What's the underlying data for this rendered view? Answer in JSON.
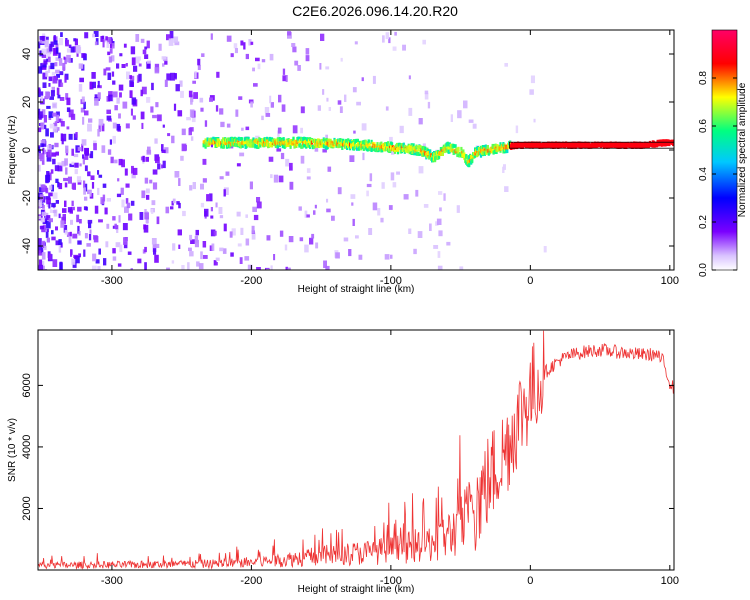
{
  "title": "C2E6.2026.096.14.20.R20",
  "chart_data": [
    {
      "type": "heatmap",
      "title": "C2E6.2026.096.14.20.R20",
      "xlabel": "Height of straight line (km)",
      "ylabel": "Frequency (Hz)",
      "xlim": [
        -353,
        103
      ],
      "ylim": [
        -50,
        50
      ],
      "xticks": [
        -300,
        -200,
        -100,
        0,
        100
      ],
      "yticks": [
        -40,
        -20,
        0,
        20,
        40
      ],
      "colorbar": {
        "label": "Normalized spectral amplitude",
        "range": [
          0,
          1
        ],
        "ticks": [
          0.0,
          0.2,
          0.4,
          0.6,
          0.8
        ],
        "colors": [
          "#ffffff",
          "#d9c2ff",
          "#7a00ff",
          "#0000ff",
          "#00c8ff",
          "#00ff80",
          "#ffff00",
          "#ff0000",
          "#ff0066"
        ]
      },
      "ridge": {
        "name": "dominant frequency trace",
        "x": [
          -235,
          -200,
          -160,
          -120,
          -100,
          -80,
          -70,
          -60,
          -50,
          -45,
          -40,
          -30,
          -20,
          -10,
          0,
          20,
          50,
          80,
          95,
          103
        ],
        "y": [
          3,
          3,
          3,
          2,
          1,
          0,
          -3,
          1,
          -1,
          -5,
          -1,
          0,
          1,
          2,
          2,
          2,
          2,
          2,
          3,
          3
        ]
      },
      "noise_region_x": [
        -353,
        -230
      ],
      "steady_tone": {
        "x": [
          -15,
          103
        ],
        "y": 2
      }
    },
    {
      "type": "line",
      "xlabel": "Height of straight line (km)",
      "ylabel": "SNR (10 * v/v)",
      "xlim": [
        -353,
        103
      ],
      "ylim": [
        0,
        7800
      ],
      "xticks": [
        -300,
        -200,
        -100,
        0,
        100
      ],
      "yticks": [
        2000,
        4000,
        6000
      ],
      "series": [
        {
          "name": "SNR",
          "color": "#ee3333",
          "x": [
            -353,
            -320,
            -290,
            -260,
            -230,
            -200,
            -180,
            -160,
            -140,
            -120,
            -100,
            -90,
            -80,
            -70,
            -60,
            -50,
            -45,
            -40,
            -35,
            -30,
            -25,
            -20,
            -15,
            -10,
            -5,
            0,
            5,
            10,
            15,
            20,
            25,
            30,
            40,
            50,
            60,
            70,
            80,
            90,
            95,
            100,
            103
          ],
          "y": [
            150,
            160,
            170,
            180,
            200,
            250,
            320,
            420,
            500,
            560,
            650,
            700,
            800,
            900,
            1100,
            1400,
            1700,
            2100,
            2500,
            2900,
            3300,
            3700,
            4200,
            4800,
            5300,
            5700,
            6100,
            6400,
            6600,
            6800,
            6900,
            7000,
            7100,
            7150,
            7100,
            7050,
            7000,
            7000,
            6800,
            6100,
            5900
          ]
        }
      ]
    }
  ]
}
